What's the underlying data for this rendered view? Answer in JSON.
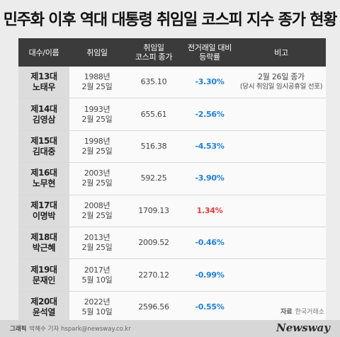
{
  "title": "민주화 이후 역대 대통령 취임일 코스피 지수 종가 현황",
  "table": {
    "headers": [
      "대수/이름",
      "취임일",
      "취임일\n코스피 종가",
      "전거래일 대비\n등락률",
      "비고"
    ],
    "rows": [
      {
        "term": "제13대",
        "name": "노태우",
        "year": "1988년",
        "day": "2월 25일",
        "kospi": "635.10",
        "change": "-3.30%",
        "direction": "down",
        "note": "2월 26일 종가",
        "note_sub": "(당시 취임일 임시공휴일 선포)"
      },
      {
        "term": "제14대",
        "name": "김영삼",
        "year": "1993년",
        "day": "2월 25일",
        "kospi": "655.61",
        "change": "-2.56%",
        "direction": "down",
        "note": "",
        "note_sub": ""
      },
      {
        "term": "제15대",
        "name": "김대중",
        "year": "1998년",
        "day": "2월 25일",
        "kospi": "516.38",
        "change": "-4.53%",
        "direction": "down",
        "note": "",
        "note_sub": ""
      },
      {
        "term": "제16대",
        "name": "노무현",
        "year": "2003년",
        "day": "2월 25일",
        "kospi": "592.25",
        "change": "-3.90%",
        "direction": "down",
        "note": "",
        "note_sub": ""
      },
      {
        "term": "제17대",
        "name": "이명박",
        "year": "2008년",
        "day": "2월 25일",
        "kospi": "1709.13",
        "change": "1.34%",
        "direction": "up",
        "note": "",
        "note_sub": ""
      },
      {
        "term": "제18대",
        "name": "박근혜",
        "year": "2013년",
        "day": "2월 25일",
        "kospi": "2009.52",
        "change": "-0.46%",
        "direction": "down",
        "note": "",
        "note_sub": ""
      },
      {
        "term": "제19대",
        "name": "문재인",
        "year": "2017년",
        "day": "5월 10일",
        "kospi": "2270.12",
        "change": "-0.99%",
        "direction": "down",
        "note": "",
        "note_sub": ""
      },
      {
        "term": "제20대",
        "name": "윤석열",
        "year": "2022년",
        "day": "5월 10일",
        "kospi": "2596.56",
        "change": "-0.55%",
        "direction": "down",
        "note": "",
        "note_sub": ""
      }
    ]
  },
  "source": {
    "label": "자료",
    "value": "한국거래소"
  },
  "credit": {
    "label": "그래픽",
    "value": "박혜수 기자 hspark@newsway.co.kr"
  },
  "logo": "Newsway",
  "colors": {
    "header_bg": "#3b3b3b",
    "down": "#1e7fd6",
    "up": "#e23a3a",
    "name_bg": "#dcdcdc"
  }
}
